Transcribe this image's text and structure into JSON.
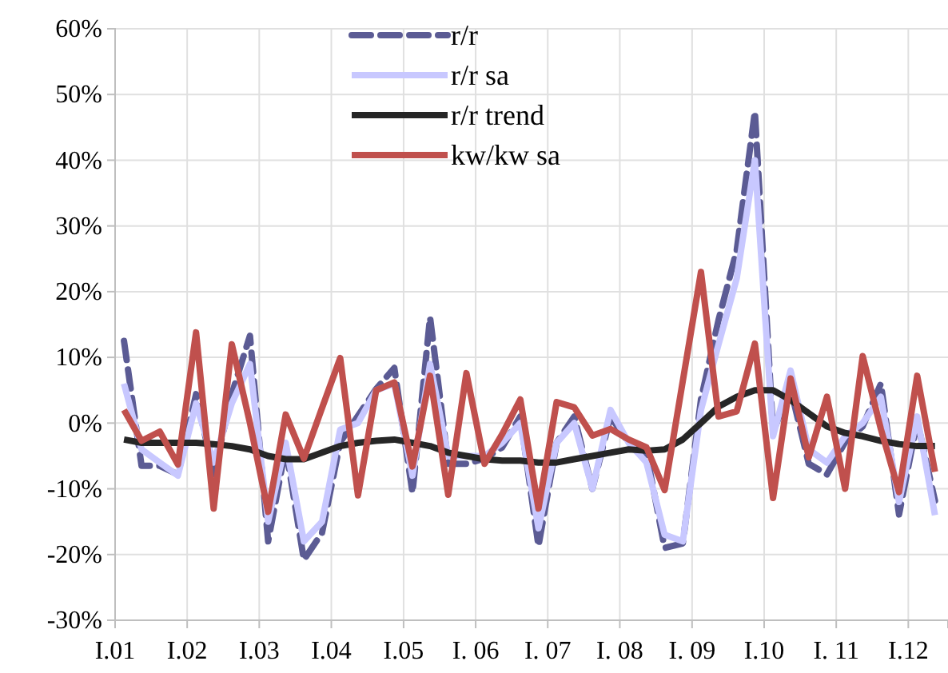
{
  "chart_data": {
    "type": "line",
    "x": [
      "2001-02-15",
      "2001-05-15",
      "2001-08-15",
      "2001-11-15",
      "2002-02-15",
      "2002-05-15",
      "2002-08-15",
      "2002-11-15",
      "2003-02-15",
      "2003-05-15",
      "2003-08-15",
      "2003-11-15",
      "2004-02-15",
      "2004-05-15",
      "2004-08-15",
      "2004-11-15",
      "2005-02-15",
      "2005-05-15",
      "2005-08-15",
      "2005-11-15",
      "2006-02-15",
      "2006-05-15",
      "2006-08-15",
      "2006-11-15",
      "2007-02-15",
      "2007-05-15",
      "2007-08-15",
      "2007-11-15",
      "2008-02-15",
      "2008-05-15",
      "2008-08-15",
      "2008-11-15",
      "2009-02-15",
      "2009-05-15",
      "2009-08-15",
      "2009-11-15",
      "2010-02-15",
      "2010-05-15",
      "2010-08-15",
      "2010-11-15",
      "2011-02-15",
      "2011-05-15",
      "2011-08-15",
      "2011-11-15",
      "2012-02-15",
      "2012-05-15"
    ],
    "series": [
      {
        "name": "r/r",
        "color": "#5b5b94",
        "line_style": "dashed",
        "values": [
          12.5,
          -6.5,
          -6.5,
          -7.8,
          4.4,
          -7.8,
          4.4,
          13.3,
          -18,
          -3.7,
          -20.8,
          -16.7,
          -2.9,
          1.1,
          5.2,
          8.4,
          -10.6,
          16.1,
          -6.2,
          -6.2,
          -5.4,
          -3.7,
          1,
          -18.7,
          -3,
          1,
          -10,
          1,
          -3,
          -4.5,
          -19,
          -18.3,
          3.6,
          15.7,
          26.3,
          47.4,
          -1.3,
          5.2,
          -6.2,
          -7.8,
          -2.9,
          -0.5,
          6,
          -13.9,
          0.3,
          -11.8
        ]
      },
      {
        "name": "r/r sa",
        "color": "#c8c8ff",
        "line_style": "solid",
        "values": [
          6,
          -4,
          -6,
          -8,
          3,
          -6,
          3,
          9,
          -15,
          -3,
          -18,
          -15,
          -1,
          0,
          5,
          6,
          -8,
          9,
          -5,
          -5,
          -5,
          -3,
          0,
          -16,
          -3,
          0,
          -10,
          2,
          -3,
          -6,
          -17,
          -18,
          2,
          12,
          22,
          40,
          -2,
          8,
          -4,
          -6,
          -2,
          0,
          4,
          -12,
          1,
          -14
        ]
      },
      {
        "name": "r/r trend",
        "color": "#262626",
        "line_style": "solid",
        "values": [
          -2.5,
          -3,
          -3,
          -3,
          -3,
          -3.2,
          -3.5,
          -4,
          -5,
          -5.5,
          -5.5,
          -4.5,
          -3.5,
          -3,
          -2.7,
          -2.5,
          -3,
          -3.5,
          -4.5,
          -5,
          -5.5,
          -5.7,
          -5.7,
          -6,
          -6,
          -5.5,
          -5,
          -4.5,
          -4,
          -4.2,
          -4,
          -2.5,
          0,
          2.5,
          4,
          5,
          5,
          3.5,
          1.5,
          -0.5,
          -1.5,
          -2,
          -2.7,
          -3.2,
          -3.5,
          -3.5
        ]
      },
      {
        "name": "kw/kw sa",
        "color": "#c0504d",
        "line_style": "solid",
        "values": [
          2,
          -2.7,
          -1.3,
          -6.3,
          13.8,
          -13,
          12,
          0,
          -13.5,
          1.3,
          -5.4,
          2.3,
          9.9,
          -11,
          5,
          6.2,
          -6.6,
          7.2,
          -10.9,
          7.6,
          -6.2,
          -1.7,
          3.6,
          -13,
          3.2,
          2.4,
          -1.9,
          -0.9,
          -2.5,
          -3.7,
          -10.2,
          6.4,
          23,
          1,
          1.8,
          12.1,
          -11.4,
          6.8,
          -5.2,
          4,
          -10,
          10.2,
          -0.9,
          -10.5,
          7.2,
          -7.4
        ]
      }
    ],
    "xlim": [
      "2001-01-01",
      "2012-07-20"
    ],
    "xticks": [
      {
        "value": "2001-01",
        "label": "I.01"
      },
      {
        "value": "2002-01",
        "label": "I.02"
      },
      {
        "value": "2003-01",
        "label": "I.03"
      },
      {
        "value": "2004-01",
        "label": "I.04"
      },
      {
        "value": "2005-01",
        "label": "I.05"
      },
      {
        "value": "2006-01",
        "label": "I. 06"
      },
      {
        "value": "2007-01",
        "label": "I. 07"
      },
      {
        "value": "2008-01",
        "label": "I. 08"
      },
      {
        "value": "2009-01",
        "label": "I. 09"
      },
      {
        "value": "2010-01",
        "label": "I.10"
      },
      {
        "value": "2011-01",
        "label": "I. 11"
      },
      {
        "value": "2012-01",
        "label": "I.12"
      }
    ],
    "ylim": [
      -30,
      60
    ],
    "yticks": [
      {
        "value": -30,
        "label": "-30%"
      },
      {
        "value": -20,
        "label": "-20%"
      },
      {
        "value": -10,
        "label": "-10%"
      },
      {
        "value": 0,
        "label": "0%"
      },
      {
        "value": 10,
        "label": "10%"
      },
      {
        "value": 20,
        "label": "20%"
      },
      {
        "value": 30,
        "label": "30%"
      },
      {
        "value": 40,
        "label": "40%"
      },
      {
        "value": 50,
        "label": "50%"
      },
      {
        "value": 60,
        "label": "60%"
      }
    ],
    "grid": true,
    "legend": "top"
  }
}
